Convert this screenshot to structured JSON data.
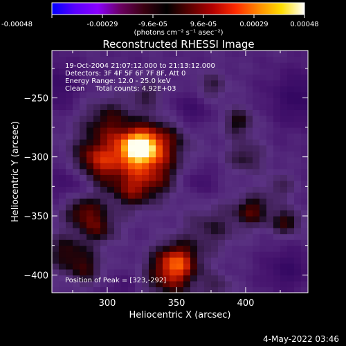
{
  "colorbar": {
    "tick_labels": [
      "-0.00048",
      "-0.00029",
      "-9.6e-05",
      "9.6e-05",
      "0.00029",
      "0.00048"
    ],
    "unit_label": "(photons cm⁻² s⁻¹ asec⁻²)",
    "range": [
      -0.00048,
      0.00048
    ],
    "colors": [
      "#0000ff",
      "#5a00ff",
      "#8a00ff",
      "#6a0060",
      "#3a0010",
      "#000000",
      "#5a0000",
      "#b20000",
      "#ff2a00",
      "#ff8a00",
      "#ffdd00",
      "#ffffff"
    ]
  },
  "chart_data": {
    "type": "heatmap",
    "title": "Reconstructed RHESSI Image",
    "xlabel": "Heliocentric X (arcsec)",
    "ylabel": "Heliocentric Y (arcsec)",
    "xlim": [
      260,
      445
    ],
    "ylim": [
      -415,
      -210
    ],
    "xticks": [
      300,
      350,
      400
    ],
    "yticks": [
      -250,
      -300,
      -350,
      -400
    ],
    "annotations": [
      "19-Oct-2004 21:07:12.000 to 21:13:12.000",
      "Detectors: 3F 4F 5F 6F 7F 8F, Att 0",
      "Energy Range: 12.0 - 25.0 keV",
      "Clean     Total counts: 4.92E+03"
    ],
    "peak_label": "Position of Peak = [323,-292]",
    "peak": [
      323,
      -292
    ],
    "sources": [
      {
        "x": 323,
        "y": -292,
        "sigma": 9,
        "amp": 1.0
      },
      {
        "x": 310,
        "y": -300,
        "sigma": 22,
        "amp": 0.55
      },
      {
        "x": 340,
        "y": -285,
        "sigma": 14,
        "amp": 0.45
      },
      {
        "x": 300,
        "y": -268,
        "sigma": 14,
        "amp": 0.35
      },
      {
        "x": 290,
        "y": -305,
        "sigma": 12,
        "amp": 0.45
      },
      {
        "x": 335,
        "y": -315,
        "sigma": 14,
        "amp": 0.4
      },
      {
        "x": 318,
        "y": -330,
        "sigma": 11,
        "amp": 0.35
      },
      {
        "x": 282,
        "y": -345,
        "sigma": 10,
        "amp": 0.55
      },
      {
        "x": 295,
        "y": -360,
        "sigma": 10,
        "amp": 0.45
      },
      {
        "x": 270,
        "y": -380,
        "sigma": 12,
        "amp": 0.45
      },
      {
        "x": 285,
        "y": -395,
        "sigma": 10,
        "amp": 0.4
      },
      {
        "x": 350,
        "y": -388,
        "sigma": 12,
        "amp": 0.75
      },
      {
        "x": 345,
        "y": -405,
        "sigma": 14,
        "amp": 0.45
      },
      {
        "x": 375,
        "y": -360,
        "sigma": 14,
        "amp": 0.35
      },
      {
        "x": 405,
        "y": -345,
        "sigma": 10,
        "amp": 0.55
      },
      {
        "x": 430,
        "y": -355,
        "sigma": 8,
        "amp": 0.5
      },
      {
        "x": 395,
        "y": -270,
        "sigma": 9,
        "amp": 0.45
      },
      {
        "x": 400,
        "y": -300,
        "sigma": 10,
        "amp": 0.4
      },
      {
        "x": 375,
        "y": -240,
        "sigma": 9,
        "amp": 0.35
      },
      {
        "x": 425,
        "y": -325,
        "sigma": 8,
        "amp": 0.3
      },
      {
        "x": 330,
        "y": -245,
        "sigma": 9,
        "amp": 0.3
      },
      {
        "x": 380,
        "y": -410,
        "sigma": 8,
        "amp": 0.3
      },
      {
        "x": 260,
        "y": -240,
        "sigma": 14,
        "amp": -0.35
      },
      {
        "x": 275,
        "y": -320,
        "sigma": 12,
        "amp": -0.35
      },
      {
        "x": 440,
        "y": -250,
        "sigma": 16,
        "amp": -0.4
      },
      {
        "x": 360,
        "y": -260,
        "sigma": 11,
        "amp": -0.3
      },
      {
        "x": 430,
        "y": -395,
        "sigma": 12,
        "amp": -0.35
      },
      {
        "x": 310,
        "y": -410,
        "sigma": 9,
        "amp": -0.2
      },
      {
        "x": 365,
        "y": -320,
        "sigma": 9,
        "amp": -0.25
      }
    ]
  },
  "footer": {
    "timestamp": "4-May-2022 03:46"
  }
}
